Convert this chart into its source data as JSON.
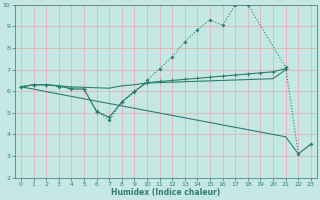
{
  "xlabel": "Humidex (Indice chaleur)",
  "xlim": [
    -0.5,
    23.5
  ],
  "ylim": [
    2,
    10
  ],
  "yticks": [
    2,
    3,
    4,
    5,
    6,
    7,
    8,
    9,
    10
  ],
  "xticks": [
    0,
    1,
    2,
    3,
    4,
    5,
    6,
    7,
    8,
    9,
    10,
    11,
    12,
    13,
    14,
    15,
    16,
    17,
    18,
    19,
    20,
    21,
    22,
    23
  ],
  "bg_color": "#c6e8e5",
  "grid_color": "#e8aaaa",
  "line_color": "#2e7d6e",
  "tick_color": "#2e7d6e",
  "xlabel_color": "#2e7d6e",
  "s1_x": [
    0,
    1,
    2,
    3,
    4,
    5,
    6,
    7,
    8,
    9,
    10,
    11,
    12,
    13,
    14,
    15,
    16,
    17,
    18,
    21,
    22,
    23
  ],
  "s1_y": [
    6.2,
    6.3,
    6.3,
    6.2,
    6.15,
    6.1,
    5.1,
    4.65,
    5.5,
    5.95,
    6.5,
    7.05,
    7.6,
    8.3,
    8.85,
    9.3,
    9.05,
    10.0,
    10.0,
    7.1,
    3.1,
    3.55
  ],
  "s2_x": [
    0,
    1,
    2,
    3,
    4,
    5,
    6,
    7,
    8,
    9,
    10,
    11,
    12,
    13,
    14,
    15,
    16,
    17,
    18,
    19,
    20,
    21
  ],
  "s2_y": [
    6.2,
    6.3,
    6.3,
    6.25,
    6.1,
    6.1,
    5.05,
    4.8,
    5.5,
    6.0,
    6.4,
    6.45,
    6.5,
    6.55,
    6.6,
    6.65,
    6.7,
    6.75,
    6.8,
    6.85,
    6.9,
    7.05
  ],
  "s3_x": [
    0,
    1,
    2,
    3,
    4,
    5,
    6,
    7,
    8,
    9,
    10,
    11,
    12,
    13,
    14,
    15,
    16,
    17,
    18,
    19,
    20,
    21
  ],
  "s3_y": [
    6.2,
    6.3,
    6.3,
    6.25,
    6.2,
    6.18,
    6.16,
    6.14,
    6.25,
    6.3,
    6.38,
    6.4,
    6.42,
    6.44,
    6.46,
    6.48,
    6.5,
    6.52,
    6.54,
    6.56,
    6.58,
    7.0
  ],
  "s4_x": [
    0,
    1,
    2,
    3,
    4,
    5,
    6,
    7,
    8,
    9,
    10,
    11,
    12,
    13,
    14,
    15,
    16,
    17,
    18,
    19,
    20,
    21,
    22,
    23
  ],
  "s4_y": [
    6.2,
    6.1,
    5.98,
    5.87,
    5.76,
    5.65,
    5.54,
    5.43,
    5.32,
    5.21,
    5.1,
    4.99,
    4.88,
    4.77,
    4.66,
    4.55,
    4.44,
    4.33,
    4.22,
    4.11,
    4.0,
    3.89,
    3.1,
    3.55
  ]
}
